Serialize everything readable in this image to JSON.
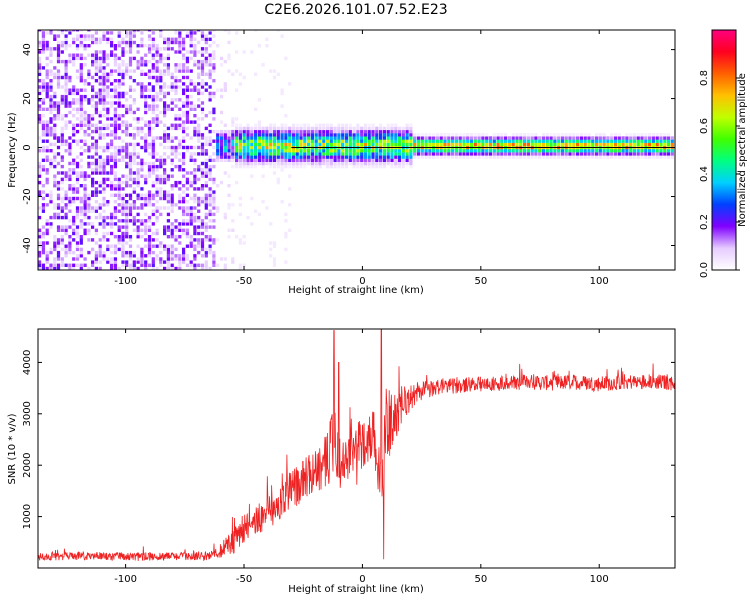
{
  "title": "C2E6.2026.101.07.52.E23",
  "chart_data": [
    {
      "type": "heatmap",
      "xlabel": "Height of straight line (km)",
      "ylabel": "Frequency (Hz)",
      "xlim": [
        -137,
        132
      ],
      "ylim": [
        -50,
        48
      ],
      "xticks": [
        -100,
        -50,
        0,
        50,
        100
      ],
      "yticks": [
        -40,
        -20,
        0,
        20,
        40
      ],
      "ridge_frequency_hz": 0,
      "colorbar": {
        "label": "Normalized spectral amplitude",
        "range": [
          0,
          1
        ],
        "ticks": [
          0.0,
          0.2,
          0.4,
          0.6,
          0.8
        ],
        "tick_labels": [
          "0.0",
          "0.2",
          "0.4",
          "0.6",
          "0.8"
        ],
        "colormap": "rainbow",
        "color_stops": [
          "#ffffff",
          "#e6ccff",
          "#8000ff",
          "#0040ff",
          "#00d0ff",
          "#00ff80",
          "#40ff00",
          "#c0ff00",
          "#ffc000",
          "#ff6000",
          "#ff0020",
          "#ff0080"
        ]
      },
      "regions": [
        {
          "x_range": [
            -137,
            -62
          ],
          "description_level": "dense purple speckle over full frequency range"
        },
        {
          "x_range": [
            -62,
            20
          ],
          "freq_spread_hz": [
            -6,
            7
          ],
          "max_amplitude": 0.8
        },
        {
          "x_range": [
            20,
            132
          ],
          "freq_spread_hz": [
            -3,
            3
          ],
          "max_amplitude": 0.9
        }
      ]
    },
    {
      "type": "line",
      "xlabel": "Height of straight line (km)",
      "ylabel": "SNR (10 * v/v)",
      "xlim": [
        -137,
        132
      ],
      "ylim": [
        0,
        4650
      ],
      "xticks": [
        -100,
        -50,
        0,
        50,
        100
      ],
      "yticks": [
        1000,
        2000,
        3000,
        4000
      ],
      "color": "#ee2222",
      "series": [
        {
          "x": [
            -137,
            -120,
            -100,
            -80,
            -65,
            -60,
            -55,
            -50,
            -45,
            -40,
            -35,
            -30,
            -25,
            -20,
            -15,
            -12,
            -10,
            -5,
            0,
            5,
            8,
            10,
            15,
            20,
            25,
            30,
            40,
            50,
            60,
            70,
            80,
            90,
            100,
            110,
            120,
            132
          ],
          "y": [
            220,
            230,
            220,
            230,
            240,
            330,
            500,
            750,
            950,
            1050,
            1250,
            1500,
            1700,
            1900,
            2100,
            2400,
            2000,
            2200,
            2450,
            2600,
            1500,
            2800,
            3000,
            3300,
            3450,
            3500,
            3550,
            3580,
            3600,
            3620,
            3600,
            3620,
            3580,
            3620,
            3630,
            3600
          ],
          "spike_amplitude": [
            150,
            150,
            160,
            160,
            180,
            300,
            500,
            550,
            600,
            650,
            700,
            750,
            800,
            900,
            1000,
            1900,
            1000,
            1000,
            1000,
            1000,
            1200,
            1400,
            900,
            500,
            350,
            320,
            300,
            300,
            300,
            300,
            300,
            300,
            300,
            300,
            300,
            300
          ],
          "spikes": [
            {
              "x": -12,
              "y": 4620
            },
            {
              "x": -10,
              "y": 4000
            },
            {
              "x": 8,
              "y": 4650
            },
            {
              "x": 9,
              "y": 170
            }
          ]
        }
      ]
    }
  ]
}
